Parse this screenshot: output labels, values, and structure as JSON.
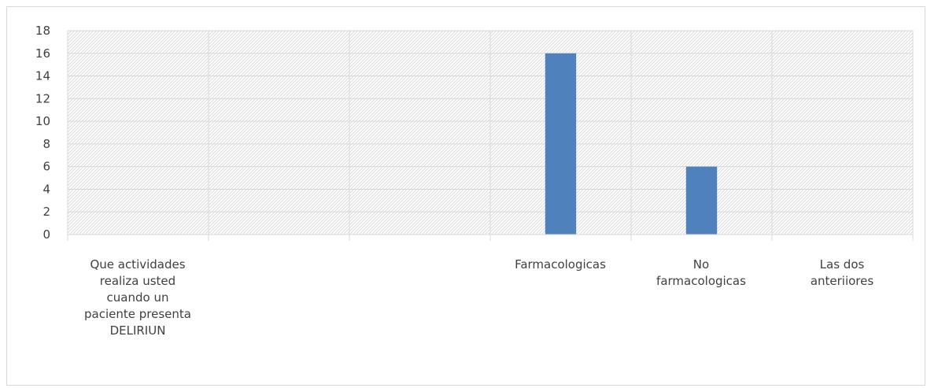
{
  "chart_data": {
    "type": "bar",
    "title": "",
    "xlabel": "",
    "ylabel": "",
    "categories": [
      "Que actividades realiza usted cuando un paciente presenta DELIRIUN",
      "",
      "",
      "Farmacologicas",
      "No farmacologicas",
      "Las dos anteriiores"
    ],
    "category_lines": [
      [
        "Que actividades",
        "realiza usted",
        "cuando un",
        "paciente presenta",
        "DELIRIUN"
      ],
      [],
      [],
      [
        "Farmacologicas"
      ],
      [
        "No",
        "farmacologicas"
      ],
      [
        "Las dos",
        "anteriiores"
      ]
    ],
    "values": [
      0,
      0,
      0,
      16,
      6,
      0
    ],
    "ylim": [
      0,
      18
    ],
    "yticks": [
      0,
      2,
      4,
      6,
      8,
      10,
      12,
      14,
      16,
      18
    ],
    "bar_color": "#4f81bd",
    "grid": true,
    "legend": "none"
  }
}
